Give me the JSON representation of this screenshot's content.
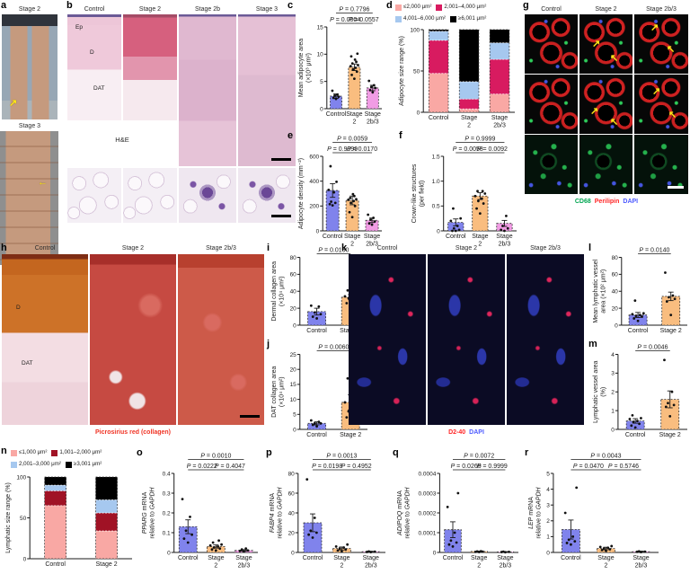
{
  "panels": {
    "a": {
      "label": "a",
      "photos": [
        {
          "title": "Stage 2"
        },
        {
          "title": "Stage 3"
        }
      ]
    },
    "b": {
      "label": "b",
      "columns": [
        "Control",
        "Stage 2",
        "Stage 2b",
        "Stage 3"
      ],
      "tissue_labels": {
        "ep": "Ep",
        "d": "D",
        "dat": "DAT"
      },
      "stain": "H&E"
    },
    "c": {
      "label": "c"
    },
    "d": {
      "label": "d"
    },
    "e": {
      "label": "e"
    },
    "f": {
      "label": "f"
    },
    "g": {
      "label": "g",
      "columns": [
        "Control",
        "Stage 2",
        "Stage 2b/3"
      ],
      "caption": [
        {
          "text": "CD68",
          "color": "#00a651"
        },
        {
          "text": "Perilipin",
          "color": "#ff2626"
        },
        {
          "text": "DAPI",
          "color": "#4d5bff"
        }
      ]
    },
    "h": {
      "label": "h",
      "columns": [
        "Control",
        "Stage 2",
        "Stage 2b/3"
      ],
      "tissue_labels": {
        "d": "D",
        "dat": "DAT"
      },
      "caption": {
        "text": "Picrosirius red (collagen)",
        "color": "#f03425"
      }
    },
    "i": {
      "label": "i"
    },
    "j": {
      "label": "j"
    },
    "k": {
      "label": "k",
      "columns": [
        "Control",
        "Stage 2",
        "Stage 2b/3"
      ],
      "caption": [
        {
          "text": "D2-40",
          "color": "#ff2626"
        },
        {
          "text": "DAPI",
          "color": "#4d5bff"
        }
      ]
    },
    "l": {
      "label": "l"
    },
    "m": {
      "label": "m"
    },
    "n": {
      "label": "n"
    },
    "o": {
      "label": "o"
    },
    "p": {
      "label": "p"
    },
    "q": {
      "label": "q"
    },
    "r": {
      "label": "r"
    }
  },
  "icons": {
    "arrow_ne": "↗",
    "arrow_nw": "↖",
    "arrow_w": "←"
  },
  "colors": {
    "control_bar": "#8083ec",
    "stage2_bar": "#f9bd7f",
    "stage2b3_bar": "#f19ce4"
  },
  "chart_data": [
    {
      "panel": "c",
      "type": "bar",
      "ylabel": "Mean adipocyte area\n(×10³ μm²)",
      "ylim": [
        0,
        15
      ],
      "yticks": [
        "0",
        "5",
        "10",
        "15"
      ],
      "categories": [
        [
          "Control"
        ],
        [
          "Stage",
          "2"
        ],
        [
          "Stage",
          "2b/3"
        ]
      ],
      "values": [
        2.3,
        7.6,
        3.8
      ],
      "errors": [
        0.4,
        0.6,
        0.5
      ],
      "colors": [
        "#8083ec",
        "#f9bd7f",
        "#f19ce4"
      ],
      "points": [
        [
          1.8,
          2.0,
          2.2,
          2.4,
          2.6,
          3.3
        ],
        [
          5.5,
          6.2,
          6.8,
          7.2,
          7.5,
          7.8,
          8.0,
          8.3,
          8.6,
          9.0,
          9.6,
          10.1
        ],
        [
          3.0,
          3.4,
          3.8,
          4.0,
          4.3,
          5.1
        ]
      ],
      "brackets": [
        {
          "label": "P = 0.7796",
          "from": 0,
          "to": 2,
          "level": 1
        },
        {
          "label": "P = 0.0004",
          "from": 0,
          "to": 1,
          "level": 0
        },
        {
          "label": "P = 0.0557",
          "from": 1,
          "to": 2,
          "level": 0
        }
      ]
    },
    {
      "panel": "d",
      "type": "stacked-bar",
      "ylabel": "Adipocyte size range (%)",
      "ylim": [
        0,
        100
      ],
      "yticks": [
        "0",
        "50",
        "100"
      ],
      "categories": [
        [
          "Control"
        ],
        [
          "Stage",
          "2"
        ],
        [
          "Stage",
          "2b/3"
        ]
      ],
      "legend": [
        {
          "label": "≤2,000 μm²",
          "color": "#f9a8a4"
        },
        {
          "label": "2,001–4,000 μm²",
          "color": "#d81b60"
        },
        {
          "label": "4,001–6,000 μm²",
          "color": "#a6c8ef"
        },
        {
          "label": "≥6,001 μm²",
          "color": "#000000"
        }
      ],
      "colors": [
        "#f9a8a4",
        "#d81b60",
        "#a6c8ef",
        "#000000"
      ],
      "values": [
        [
          47,
          40,
          11,
          2
        ],
        [
          4,
          12,
          21,
          63
        ],
        [
          22,
          42,
          20,
          16
        ]
      ],
      "legend_position": "top"
    },
    {
      "panel": "e",
      "type": "bar",
      "ylabel": "Adipocyte density (mm⁻²)",
      "ylim": [
        0,
        600
      ],
      "yticks": [
        "0",
        "200",
        "400",
        "600"
      ],
      "categories": [
        [
          "Control"
        ],
        [
          "Stage",
          "2"
        ],
        [
          "Stage",
          "2b/3"
        ]
      ],
      "values": [
        325,
        245,
        85
      ],
      "errors": [
        55,
        35,
        18
      ],
      "colors": [
        "#8083ec",
        "#f9bd7f",
        "#f19ce4"
      ],
      "points": [
        [
          205,
          215,
          225,
          235,
          310,
          330,
          395,
          520
        ],
        [
          110,
          150,
          200,
          225,
          240,
          250,
          255,
          265,
          280,
          295
        ],
        [
          50,
          60,
          75,
          90,
          105,
          130
        ]
      ],
      "brackets": [
        {
          "label": "P = 0.0059",
          "from": 0,
          "to": 2,
          "level": 1
        },
        {
          "label": "P = 0.9999",
          "from": 0,
          "to": 1,
          "level": 0
        },
        {
          "label": "P = 0.0170",
          "from": 1,
          "to": 2,
          "level": 0
        }
      ]
    },
    {
      "panel": "f",
      "type": "bar",
      "ylabel": "Crown-like structures\n(per field)",
      "ylim": [
        0,
        1.5
      ],
      "yticks": [
        "0",
        "0.5",
        "1.0",
        "1.5"
      ],
      "categories": [
        [
          "Control"
        ],
        [
          "Stage",
          "2"
        ],
        [
          "Stage",
          "2b/3"
        ]
      ],
      "values": [
        0.17,
        0.7,
        0.15
      ],
      "errors": [
        0.07,
        0.07,
        0.06
      ],
      "colors": [
        "#8083ec",
        "#f9bd7f",
        "#f19ce4"
      ],
      "points": [
        [
          0.0,
          0.0,
          0.02,
          0.05,
          0.1,
          0.2,
          0.25,
          0.45
        ],
        [
          0.35,
          0.45,
          0.55,
          0.6,
          0.65,
          0.7,
          0.75,
          0.8,
          0.8
        ],
        [
          0.0,
          0.02,
          0.05,
          0.1,
          0.3
        ]
      ],
      "brackets": [
        {
          "label": "P = 0.9999",
          "from": 0,
          "to": 2,
          "level": 1
        },
        {
          "label": "P = 0.0058",
          "from": 0,
          "to": 1,
          "level": 0
        },
        {
          "label": "P = 0.0092",
          "from": 1,
          "to": 2,
          "level": 0
        }
      ]
    },
    {
      "panel": "i",
      "type": "bar",
      "ylabel": "Dermal collagen area\n(×10⁴ μm²)",
      "ylim": [
        0,
        80
      ],
      "yticks": [
        "0",
        "20",
        "40",
        "60",
        "80"
      ],
      "categories": [
        [
          "Control"
        ],
        [
          "Stage 2"
        ]
      ],
      "values": [
        16,
        33
      ],
      "errors": [
        4,
        3
      ],
      "colors": [
        "#8083ec",
        "#f9bd7f"
      ],
      "points": [
        [
          8,
          10,
          13,
          15,
          22,
          23
        ],
        [
          22,
          26,
          30,
          32,
          33,
          34,
          36,
          41
        ]
      ],
      "brackets": [
        {
          "label": "P = 0.0160",
          "from": 0,
          "to": 1,
          "level": 0
        }
      ]
    },
    {
      "panel": "j",
      "type": "bar",
      "ylabel": "DAT collagen area\n(×10⁴ μm²)",
      "ylim": [
        0,
        25
      ],
      "yticks": [
        "0",
        "5",
        "10",
        "15",
        "20",
        "25"
      ],
      "categories": [
        [
          "Control"
        ],
        [
          "Stage 2"
        ]
      ],
      "values": [
        2,
        9
      ],
      "errors": [
        0.5,
        2.5
      ],
      "colors": [
        "#8083ec",
        "#f9bd7f"
      ],
      "points": [
        [
          1,
          1.5,
          2,
          2,
          2.5,
          3
        ],
        [
          3,
          4,
          5,
          6,
          8,
          9,
          13,
          17,
          23,
          24
        ]
      ],
      "brackets": [
        {
          "label": "P = 0.0060",
          "from": 0,
          "to": 1,
          "level": 0
        }
      ]
    },
    {
      "panel": "l",
      "type": "bar",
      "ylabel": "Mean lymphatic vessel\narea (×10² μm²)",
      "ylim": [
        0,
        80
      ],
      "yticks": [
        "0",
        "20",
        "40",
        "60",
        "80"
      ],
      "categories": [
        [
          "Control"
        ],
        [
          "Stage 2"
        ]
      ],
      "values": [
        12,
        34
      ],
      "errors": [
        3,
        5
      ],
      "colors": [
        "#8083ec",
        "#f9bd7f"
      ],
      "points": [
        [
          5,
          8,
          10,
          11,
          12,
          13,
          14,
          29
        ],
        [
          12,
          28,
          31,
          33,
          35,
          62
        ]
      ],
      "brackets": [
        {
          "label": "P = 0.0140",
          "from": 0,
          "to": 1,
          "level": 0
        }
      ]
    },
    {
      "panel": "m",
      "type": "bar",
      "ylabel": "Lymphatic vessel area\n(%)",
      "ylim": [
        0,
        4
      ],
      "yticks": [
        "0",
        "1",
        "2",
        "3",
        "4"
      ],
      "categories": [
        [
          "Control"
        ],
        [
          "Stage 2"
        ]
      ],
      "values": [
        0.45,
        1.6
      ],
      "errors": [
        0.12,
        0.45
      ],
      "colors": [
        "#8083ec",
        "#f9bd7f"
      ],
      "points": [
        [
          0.1,
          0.2,
          0.3,
          0.4,
          0.45,
          0.55,
          0.6,
          0.75
        ],
        [
          0.7,
          1.2,
          1.3,
          1.4,
          2.0,
          3.7
        ]
      ],
      "brackets": [
        {
          "label": "P = 0.0046",
          "from": 0,
          "to": 1,
          "level": 0
        }
      ]
    },
    {
      "panel": "n",
      "type": "stacked-bar",
      "ylabel": "Lymphatic size range (%)",
      "ylim": [
        0,
        100
      ],
      "yticks": [
        "0",
        "50",
        "100"
      ],
      "categories": [
        [
          "Control"
        ],
        [
          "Stage 2"
        ]
      ],
      "legend": [
        {
          "label": "≤1,000 μm²",
          "color": "#f9a8a4"
        },
        {
          "label": "1,001–2,000 μm²",
          "color": "#a01225"
        },
        {
          "label": "2,001–3,000 μm²",
          "color": "#a6c8ef"
        },
        {
          "label": "≥3,001 μm²",
          "color": "#000000"
        }
      ],
      "colors": [
        "#f9a8a4",
        "#a01225",
        "#a6c8ef",
        "#000000"
      ],
      "values": [
        [
          65,
          18,
          7,
          10
        ],
        [
          34,
          22,
          16,
          28
        ]
      ],
      "legend_position": "top"
    },
    {
      "panel": "o",
      "type": "bar",
      "ylabel": "*PPARG* mRNA\nrelative to *GAPDH*",
      "ylim": [
        0,
        0.4
      ],
      "yticks": [
        "0",
        "0.1",
        "0.2",
        "0.3",
        "0.4"
      ],
      "categories": [
        [
          "Control"
        ],
        [
          "Stage",
          "2"
        ],
        [
          "Stage",
          "2b/3"
        ]
      ],
      "values": [
        0.13,
        0.03,
        0.01
      ],
      "errors": [
        0.035,
        0.008,
        0.004
      ],
      "colors": [
        "#8083ec",
        "#f9bd7f",
        "#f19ce4"
      ],
      "points": [
        [
          0.05,
          0.07,
          0.09,
          0.11,
          0.18,
          0.27
        ],
        [
          0.01,
          0.015,
          0.02,
          0.025,
          0.03,
          0.035,
          0.04,
          0.05,
          0.06
        ],
        [
          0.005,
          0.008,
          0.01,
          0.015,
          0.02
        ]
      ],
      "brackets": [
        {
          "label": "P = 0.0010",
          "from": 0,
          "to": 2,
          "level": 1
        },
        {
          "label": "P = 0.0222",
          "from": 0,
          "to": 1,
          "level": 0
        },
        {
          "label": "P = 0.4047",
          "from": 1,
          "to": 2,
          "level": 0
        }
      ]
    },
    {
      "panel": "p",
      "type": "bar",
      "ylabel": "*FABP4* mRNA\nrelative to *GAPDH*",
      "ylim": [
        0,
        80
      ],
      "yticks": [
        "0",
        "20",
        "40",
        "60",
        "80"
      ],
      "categories": [
        [
          "Control"
        ],
        [
          "Stage",
          "2"
        ],
        [
          "Stage",
          "2b/3"
        ]
      ],
      "values": [
        30,
        4,
        0.8
      ],
      "errors": [
        9,
        1.5,
        0.4
      ],
      "colors": [
        "#8083ec",
        "#f9bd7f",
        "#f19ce4"
      ],
      "points": [
        [
          15,
          18,
          20,
          22,
          35,
          74
        ],
        [
          1,
          2,
          3,
          4,
          5,
          6,
          8
        ],
        [
          0.3,
          0.5,
          0.8,
          1
        ]
      ],
      "brackets": [
        {
          "label": "P = 0.0013",
          "from": 0,
          "to": 2,
          "level": 1
        },
        {
          "label": "P = 0.0198",
          "from": 0,
          "to": 1,
          "level": 0
        },
        {
          "label": "P = 0.4952",
          "from": 1,
          "to": 2,
          "level": 0
        }
      ]
    },
    {
      "panel": "q",
      "type": "bar",
      "ylabel": "*ADIPOQ* mRNA\nrelative to *GAPDH*",
      "ylim": [
        0,
        0.0004
      ],
      "yticks": [
        "0",
        "0.0001",
        "0.0002",
        "0.0003",
        "0.0004"
      ],
      "categories": [
        [
          "Control"
        ],
        [
          "Stage",
          "2"
        ],
        [
          "Stage",
          "2b/3"
        ]
      ],
      "values": [
        0.000115,
        5e-06,
        3e-06
      ],
      "errors": [
        4e-05,
        2e-06,
        1e-06
      ],
      "colors": [
        "#8083ec",
        "#f9bd7f",
        "#f19ce4"
      ],
      "points": [
        [
          3e-05,
          4e-05,
          5e-05,
          6e-05,
          0.0001,
          0.00023,
          0.0003
        ],
        [
          2e-06,
          3e-06,
          4e-06,
          5e-06,
          6e-06
        ],
        [
          1e-06,
          2e-06,
          3e-06,
          4e-06
        ]
      ],
      "brackets": [
        {
          "label": "P = 0.0072",
          "from": 0,
          "to": 2,
          "level": 1
        },
        {
          "label": "P = 0.0265",
          "from": 0,
          "to": 1,
          "level": 0
        },
        {
          "label": "P = 0.9999",
          "from": 1,
          "to": 2,
          "level": 0
        }
      ]
    },
    {
      "panel": "r",
      "type": "bar",
      "ylabel": "*LEP* mRNA\nrelative to *GAPDH*",
      "ylim": [
        0,
        5
      ],
      "yticks": [
        "0",
        "1",
        "2",
        "3",
        "4",
        "5"
      ],
      "categories": [
        [
          "Control"
        ],
        [
          "Stage",
          "2"
        ],
        [
          "Stage",
          "2b/3"
        ]
      ],
      "values": [
        1.45,
        0.25,
        0.05
      ],
      "errors": [
        0.6,
        0.08,
        0.03
      ],
      "colors": [
        "#8083ec",
        "#f9bd7f",
        "#f19ce4"
      ],
      "points": [
        [
          0.5,
          0.6,
          0.7,
          0.8,
          1.0,
          2.5,
          4.1
        ],
        [
          0.1,
          0.15,
          0.2,
          0.25,
          0.3,
          0.35,
          0.4
        ],
        [
          0.02,
          0.04,
          0.05,
          0.07
        ]
      ],
      "brackets": [
        {
          "label": "P = 0.0043",
          "from": 0,
          "to": 2,
          "level": 1
        },
        {
          "label": "P = 0.0470",
          "from": 0,
          "to": 1,
          "level": 0
        },
        {
          "label": "P = 0.5746",
          "from": 1,
          "to": 2,
          "level": 0
        }
      ]
    }
  ]
}
